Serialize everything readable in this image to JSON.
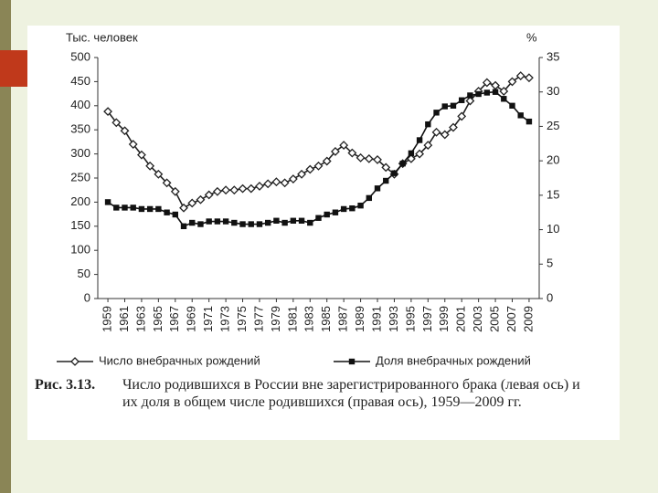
{
  "chart_data": {
    "type": "line",
    "y_label": "Тыс. человек",
    "y2_label": "%",
    "x": [
      1959,
      1960,
      1961,
      1962,
      1963,
      1964,
      1965,
      1966,
      1967,
      1968,
      1969,
      1970,
      1971,
      1972,
      1973,
      1974,
      1975,
      1976,
      1977,
      1978,
      1979,
      1980,
      1981,
      1982,
      1983,
      1984,
      1985,
      1986,
      1987,
      1988,
      1989,
      1990,
      1991,
      1992,
      1993,
      1994,
      1995,
      1996,
      1997,
      1998,
      1999,
      2000,
      2001,
      2002,
      2003,
      2004,
      2005,
      2006,
      2007,
      2008,
      2009
    ],
    "xlim": [
      1957.8,
      2010.2
    ],
    "xticks": [
      1959,
      1961,
      1963,
      1965,
      1967,
      1969,
      1971,
      1973,
      1975,
      1977,
      1979,
      1981,
      1983,
      1985,
      1987,
      1989,
      1991,
      1993,
      1995,
      1997,
      1999,
      2001,
      2003,
      2005,
      2007,
      2009
    ],
    "ylim": [
      0,
      500
    ],
    "yticks": [
      0,
      50,
      100,
      150,
      200,
      250,
      300,
      350,
      400,
      450,
      500
    ],
    "y2lim": [
      0,
      35
    ],
    "y2ticks": [
      0,
      5,
      10,
      15,
      20,
      25,
      30,
      35
    ],
    "series": [
      {
        "name": "Число внебрачных рождений",
        "color": "#222222",
        "marker": "diamond",
        "values": [
          388,
          365,
          348,
          320,
          298,
          275,
          258,
          240,
          222,
          188,
          198,
          205,
          215,
          222,
          225,
          225,
          228,
          228,
          233,
          238,
          242,
          240,
          248,
          258,
          268,
          275,
          285,
          305,
          318,
          302,
          292,
          290,
          288,
          272,
          258,
          280,
          290,
          300,
          318,
          345,
          340,
          355,
          378,
          410,
          430,
          448,
          442,
          430,
          450,
          462,
          458
        ]
      },
      {
        "name": "Доля внебрачных рождений",
        "color": "#111111",
        "marker": "square",
        "axis": "y2",
        "values": [
          14.0,
          13.2,
          13.2,
          13.2,
          13.0,
          13.0,
          13.0,
          12.5,
          12.2,
          10.5,
          11.0,
          10.8,
          11.2,
          11.2,
          11.2,
          11.0,
          10.8,
          10.8,
          10.8,
          11.0,
          11.3,
          11.0,
          11.3,
          11.3,
          11.0,
          11.7,
          12.2,
          12.5,
          13.0,
          13.1,
          13.5,
          14.6,
          16.0,
          17.1,
          18.2,
          19.6,
          21.1,
          23.0,
          25.3,
          27.0,
          27.9,
          28.0,
          28.8,
          29.5,
          29.7,
          29.9,
          30.0,
          29.0,
          28.0,
          26.6,
          25.7
        ]
      }
    ],
    "caption_number": "Рис. 3.13.",
    "caption": "Число родившихся в России вне зарегистрированного брака (левая ось) и их доля в общем числе родившихся (правая ось), 1959—2009 гг."
  }
}
